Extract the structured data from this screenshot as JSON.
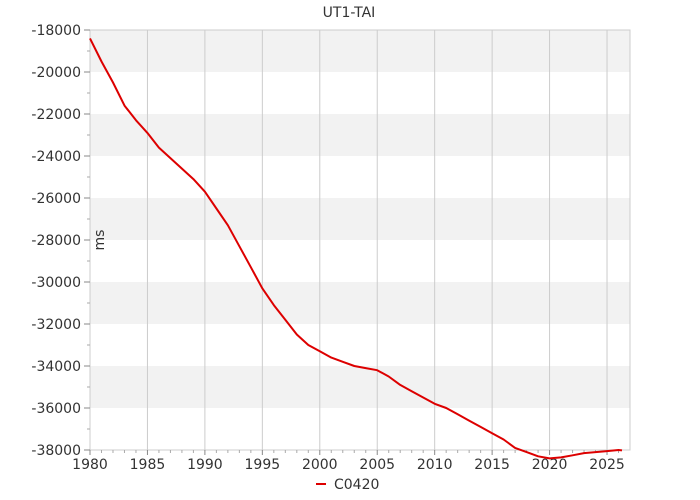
{
  "chart_data": {
    "type": "line",
    "title": "UT1-TAI",
    "xlabel": "",
    "ylabel": "ms",
    "xlim": [
      1980,
      2027
    ],
    "ylim": [
      -38000,
      -18000
    ],
    "x_ticks": [
      "1980",
      "1985",
      "1990",
      "1995",
      "2000",
      "2005",
      "2010",
      "2015",
      "2020",
      "2025"
    ],
    "y_ticks": [
      "-18000",
      "-20000",
      "-22000",
      "-24000",
      "-26000",
      "-28000",
      "-30000",
      "-32000",
      "-34000",
      "-36000",
      "-38000"
    ],
    "grid": true,
    "legend_position": "bottom",
    "series": [
      {
        "name": "C0420",
        "color": "#dd0000",
        "x": [
          1980.0,
          1981.0,
          1982.0,
          1983.0,
          1984.0,
          1985.0,
          1986.0,
          1987.0,
          1988.0,
          1989.0,
          1990.0,
          1991.0,
          1992.0,
          1993.0,
          1994.0,
          1995.0,
          1996.0,
          1997.0,
          1998.0,
          1999.0,
          2000.0,
          2001.0,
          2002.0,
          2003.0,
          2004.0,
          2005.0,
          2006.0,
          2007.0,
          2008.0,
          2009.0,
          2010.0,
          2011.0,
          2012.0,
          2013.0,
          2014.0,
          2015.0,
          2016.0,
          2017.0,
          2018.0,
          2019.0,
          2020.0,
          2021.0,
          2022.0,
          2023.0,
          2024.0,
          2025.0,
          2026.0,
          2026.3
        ],
        "y": [
          -18400,
          -19500,
          -20500,
          -21600,
          -22300,
          -22900,
          -23600,
          -24100,
          -24600,
          -25100,
          -25700,
          -26500,
          -27300,
          -28300,
          -29300,
          -30300,
          -31100,
          -31800,
          -32500,
          -33000,
          -33300,
          -33600,
          -33800,
          -34000,
          -34100,
          -34200,
          -34500,
          -34900,
          -35200,
          -35500,
          -35800,
          -36000,
          -36300,
          -36600,
          -36900,
          -37200,
          -37500,
          -37900,
          -38100,
          -38300,
          -38400,
          -38350,
          -38250,
          -38150,
          -38100,
          -38050,
          -38000,
          -38020
        ]
      }
    ]
  }
}
